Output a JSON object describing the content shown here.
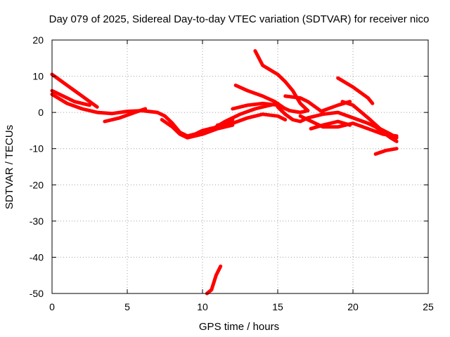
{
  "chart_data": {
    "type": "line",
    "title": "Day 079 of 2025, Sidereal Day-to-day VTEC variation (SDTVAR) for receiver nico",
    "xlabel": "GPS time / hours",
    "ylabel": "SDTVAR / TECUs",
    "xlim": [
      0,
      25
    ],
    "ylim": [
      -50,
      20
    ],
    "xticks": [
      0,
      5,
      10,
      15,
      20,
      25
    ],
    "yticks": [
      -50,
      -40,
      -30,
      -20,
      -10,
      0,
      10,
      20
    ],
    "grid": true,
    "color": "#ff0000",
    "series": [
      {
        "name": "arc-1",
        "points": [
          [
            0,
            10.5
          ],
          [
            0.5,
            9
          ],
          [
            1,
            7.5
          ],
          [
            1.5,
            6
          ],
          [
            2,
            4.5
          ],
          [
            2.5,
            3
          ],
          [
            3,
            1.5
          ]
        ]
      },
      {
        "name": "arc-2",
        "points": [
          [
            0,
            6
          ],
          [
            0.5,
            5
          ],
          [
            1,
            4
          ],
          [
            1.5,
            3
          ],
          [
            2,
            2.5
          ],
          [
            2.5,
            2
          ]
        ]
      },
      {
        "name": "arc-3",
        "points": [
          [
            0,
            5
          ],
          [
            1,
            2.5
          ],
          [
            2,
            1
          ],
          [
            3,
            0
          ],
          [
            4,
            -0.3
          ],
          [
            5,
            0.3
          ],
          [
            6,
            0.5
          ],
          [
            7,
            0
          ],
          [
            7.5,
            -1
          ],
          [
            8,
            -3
          ],
          [
            8.5,
            -5.5
          ],
          [
            9,
            -6.5
          ],
          [
            9.5,
            -6
          ],
          [
            10,
            -5
          ],
          [
            10.5,
            -4.5
          ],
          [
            11,
            -4
          ],
          [
            11.5,
            -3
          ],
          [
            12,
            -2
          ]
        ]
      },
      {
        "name": "arc-4",
        "points": [
          [
            3.5,
            -2.5
          ],
          [
            4.5,
            -1.5
          ],
          [
            5.5,
            0
          ],
          [
            6.2,
            1
          ]
        ]
      },
      {
        "name": "arc-5",
        "points": [
          [
            7.3,
            -2
          ],
          [
            8,
            -4
          ],
          [
            8.5,
            -6
          ],
          [
            9,
            -7
          ],
          [
            10,
            -6
          ],
          [
            11,
            -4.5
          ],
          [
            12,
            -3.5
          ]
        ]
      },
      {
        "name": "arc-6",
        "points": [
          [
            10.3,
            -50
          ],
          [
            10.6,
            -49
          ],
          [
            10.9,
            -45
          ],
          [
            11.2,
            -42.5
          ]
        ]
      },
      {
        "name": "arc-7",
        "points": [
          [
            10.5,
            -5
          ],
          [
            11.5,
            -2.5
          ],
          [
            12.5,
            -0.5
          ],
          [
            13.5,
            1
          ],
          [
            14.5,
            2
          ],
          [
            15,
            2.5
          ]
        ]
      },
      {
        "name": "arc-8",
        "points": [
          [
            11,
            -3.5
          ],
          [
            12,
            -3
          ],
          [
            13,
            -1.5
          ],
          [
            14,
            -0.5
          ],
          [
            15,
            -1
          ],
          [
            15.5,
            -2
          ]
        ]
      },
      {
        "name": "arc-9",
        "points": [
          [
            12,
            1
          ],
          [
            13,
            2
          ],
          [
            14,
            2.5
          ],
          [
            15,
            2
          ],
          [
            15.8,
            0.5
          ],
          [
            16.5,
            0
          ],
          [
            17,
            0.5
          ]
        ]
      },
      {
        "name": "arc-10",
        "points": [
          [
            12.2,
            7.5
          ],
          [
            13,
            6
          ],
          [
            14,
            4.5
          ],
          [
            14.8,
            3
          ],
          [
            15.5,
            1
          ]
        ]
      },
      {
        "name": "arc-11",
        "points": [
          [
            13.5,
            17
          ],
          [
            14,
            13
          ],
          [
            15,
            10.5
          ],
          [
            15.5,
            8.5
          ],
          [
            16,
            6
          ],
          [
            16.5,
            2.5
          ],
          [
            17,
            0.5
          ]
        ]
      },
      {
        "name": "arc-12",
        "points": [
          [
            15,
            1.5
          ],
          [
            15.5,
            -0.5
          ],
          [
            16,
            -2
          ],
          [
            16.5,
            -2.5
          ],
          [
            17,
            -1.5
          ],
          [
            18,
            -0.5
          ],
          [
            19,
            0
          ],
          [
            20,
            -1.5
          ],
          [
            21,
            -3
          ],
          [
            21.5,
            -4
          ],
          [
            22,
            -5.5
          ],
          [
            22.5,
            -7
          ],
          [
            22.9,
            -8
          ]
        ]
      },
      {
        "name": "arc-13",
        "points": [
          [
            15.5,
            4.5
          ],
          [
            16.5,
            4
          ],
          [
            17,
            3
          ],
          [
            17.5,
            1.5
          ],
          [
            18,
            0
          ]
        ]
      },
      {
        "name": "arc-14",
        "points": [
          [
            16.5,
            -1
          ],
          [
            17,
            -2
          ],
          [
            18,
            -4
          ],
          [
            19,
            -4
          ],
          [
            20,
            -3
          ],
          [
            21,
            -4.5
          ],
          [
            22,
            -6
          ],
          [
            22.9,
            -6.5
          ]
        ]
      },
      {
        "name": "arc-15",
        "points": [
          [
            17.2,
            -4.5
          ],
          [
            18,
            -3.5
          ],
          [
            19,
            -2.5
          ],
          [
            19.8,
            -3.5
          ]
        ]
      },
      {
        "name": "arc-16",
        "points": [
          [
            18,
            0.5
          ],
          [
            19,
            2
          ],
          [
            19.8,
            3
          ]
        ]
      },
      {
        "name": "arc-17",
        "points": [
          [
            19,
            9.5
          ],
          [
            20,
            7
          ],
          [
            21,
            4
          ],
          [
            21.3,
            2.5
          ]
        ]
      },
      {
        "name": "arc-18",
        "points": [
          [
            19.3,
            3
          ],
          [
            20,
            2
          ],
          [
            21,
            -1.5
          ],
          [
            21.8,
            -4.5
          ],
          [
            22.5,
            -6
          ],
          [
            22.9,
            -7
          ]
        ]
      },
      {
        "name": "arc-19",
        "points": [
          [
            21.5,
            -11.5
          ],
          [
            22.2,
            -10.5
          ],
          [
            22.9,
            -10
          ]
        ]
      }
    ]
  }
}
